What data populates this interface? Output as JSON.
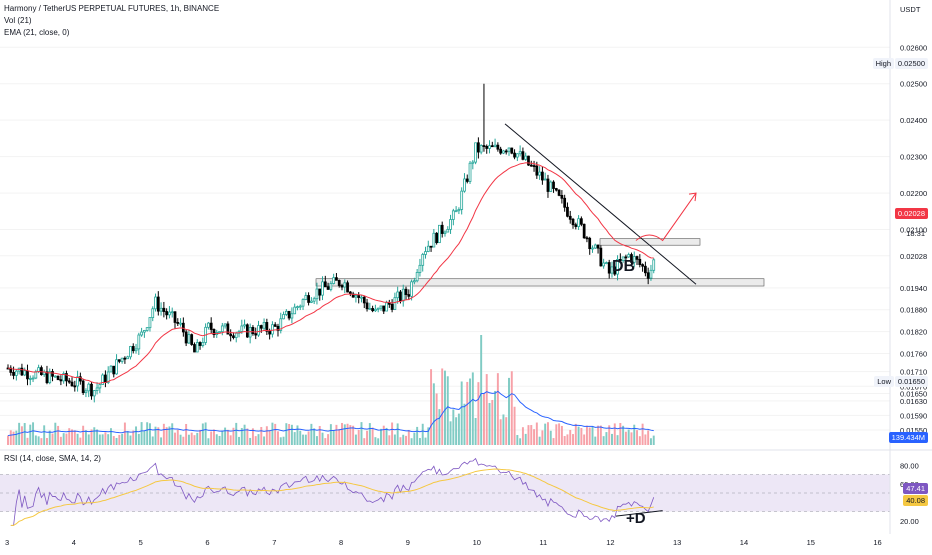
{
  "legend": {
    "title": "Harmony / TetherUS PERPETUAL FUTURES, 1h, BINANCE",
    "vol": "Vol (21)",
    "ema": "EMA (21, close, 0)",
    "rsi": "RSI (14, close, SMA, 14, 2)"
  },
  "price_axis": {
    "currency": "USDT",
    "ticks": [
      "0.02600",
      "0.02500",
      "0.02400",
      "0.02300",
      "0.02200",
      "0.02100",
      "0.02028",
      "0.01940",
      "0.01880",
      "0.01820",
      "0.01760",
      "0.01710",
      "0.01670",
      "0.01650",
      "0.01630",
      "0.01590",
      "0.01550"
    ],
    "high_label": "High",
    "high_value": "0.02500",
    "low_label": "Low",
    "low_value": "0.01650",
    "last_price": "0.02028",
    "countdown": "18:31",
    "volume_value": "139.434M"
  },
  "rsi_axis": {
    "ticks": [
      "80.00",
      "60.00",
      "20.00"
    ],
    "rsi_value": "47.41",
    "sma_value": "40.08"
  },
  "time_axis": [
    "3",
    "4",
    "5",
    "6",
    "7",
    "8",
    "9",
    "10",
    "11",
    "12",
    "13",
    "14",
    "15",
    "16"
  ],
  "annotations": {
    "double_bottom": "DB",
    "divergence": "+D"
  },
  "colors": {
    "up": "#26a69a",
    "down": "#000000",
    "ema": "#f23645",
    "vol_up": "#80cbc4",
    "vol_down": "#f7a1a8",
    "vol_ma": "#2962ff",
    "rsi_line": "#7e57c2",
    "rsi_sma": "#f5c842",
    "rsi_band": "#ede7f6"
  },
  "chart_data": {
    "type": "candlestick",
    "title": "Harmony / TetherUS PERPETUAL FUTURES, 1h, BINANCE",
    "timeframe": "1h",
    "x_range": [
      "3",
      "16"
    ],
    "ylim": [
      0.0155,
      0.0262
    ],
    "close_key_points": [
      {
        "x": "3",
        "close": 0.0172
      },
      {
        "x": "4",
        "close": 0.0168
      },
      {
        "x": "4.3",
        "close": 0.0166
      },
      {
        "x": "5",
        "close": 0.0181
      },
      {
        "x": "5.2",
        "close": 0.019
      },
      {
        "x": "5.6",
        "close": 0.0183
      },
      {
        "x": "5.8",
        "close": 0.0176
      },
      {
        "x": "6",
        "close": 0.0183
      },
      {
        "x": "6.5",
        "close": 0.0182
      },
      {
        "x": "7",
        "close": 0.0183
      },
      {
        "x": "7.5",
        "close": 0.0192
      },
      {
        "x": "8",
        "close": 0.0196
      },
      {
        "x": "8.5",
        "close": 0.0187
      },
      {
        "x": "9",
        "close": 0.0193
      },
      {
        "x": "9.2",
        "close": 0.0204
      },
      {
        "x": "9.7",
        "close": 0.0214
      },
      {
        "x": "10",
        "close": 0.0232
      },
      {
        "x": "10.3",
        "close": 0.0232
      },
      {
        "x": "10.5",
        "close": 0.0233
      },
      {
        "x": "11",
        "close": 0.0224
      },
      {
        "x": "11.6",
        "close": 0.021
      },
      {
        "x": "12",
        "close": 0.0198
      },
      {
        "x": "12.3",
        "close": 0.0203
      },
      {
        "x": "12.6",
        "close": 0.0198
      },
      {
        "x": "12.7",
        "close": 0.02028
      }
    ],
    "high": 0.025,
    "low": 0.0165,
    "last_price": 0.02028,
    "ema_period": 21,
    "volume_ma_period": 21,
    "rsi": {
      "period": 14,
      "last": 47.41,
      "sma": 40.08,
      "bands": [
        30,
        70
      ]
    },
    "annotations": [
      "DB",
      "+D"
    ]
  }
}
